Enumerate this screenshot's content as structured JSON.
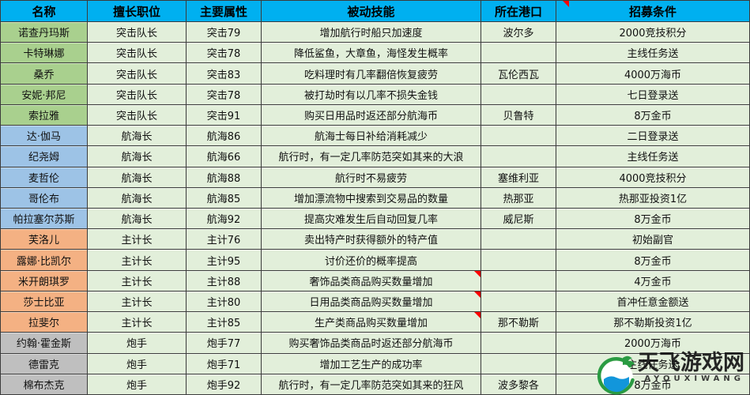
{
  "chart_data": {
    "type": "table",
    "columns": [
      "名称",
      "擅长职位",
      "主要属性",
      "被动技能",
      "所在港口",
      "招募条件"
    ],
    "rows": [
      {
        "name": "诺查丹玛斯",
        "job": "突击队长",
        "attribute": "突击79",
        "skill": "增加航行时船只加速度",
        "port": "波尔多",
        "condition": "2000竞技积分",
        "group": "assault-captain"
      },
      {
        "name": "卡特琳娜",
        "job": "突击队长",
        "attribute": "突击78",
        "skill": "降低鲨鱼，大章鱼，海怪发生概率",
        "port": "",
        "condition": "主线任务送",
        "group": "assault-captain"
      },
      {
        "name": "桑乔",
        "job": "突击队长",
        "attribute": "突击83",
        "skill": "吃料理时有几率翻倍恢复疲劳",
        "port": "瓦伦西瓦",
        "condition": "4000万海币",
        "group": "assault-captain"
      },
      {
        "name": "安妮·邦尼",
        "job": "突击队长",
        "attribute": "突击78",
        "skill": "被打劫时有以几率不损失金钱",
        "port": "",
        "condition": "七日登录送",
        "group": "assault-captain"
      },
      {
        "name": "索拉雅",
        "job": "突击队长",
        "attribute": "突击91",
        "skill": "购买日用品时返还部分航海币",
        "port": "贝鲁特",
        "condition": "8万金币",
        "group": "assault-captain"
      },
      {
        "name": "达·伽马",
        "job": "航海长",
        "attribute": "航海86",
        "skill": "航海士每日补给消耗减少",
        "port": "",
        "condition": "二日登录送",
        "group": "navigator"
      },
      {
        "name": "纪尧姆",
        "job": "航海长",
        "attribute": "航海66",
        "skill": "航行时，有一定几率防范突如其来的大浪",
        "port": "",
        "condition": "主线任务送",
        "group": "navigator"
      },
      {
        "name": "麦哲伦",
        "job": "航海长",
        "attribute": "航海88",
        "skill": "航行时不易疲劳",
        "port": "塞维利亚",
        "condition": "4000竞技积分",
        "group": "navigator"
      },
      {
        "name": "哥伦布",
        "job": "航海长",
        "attribute": "航海85",
        "skill": "增加漂流物中搜索到交易品的数量",
        "port": "热那亚",
        "condition": "热那亚投资1亿",
        "group": "navigator"
      },
      {
        "name": "帕拉塞尔苏斯",
        "job": "航海长",
        "attribute": "航海92",
        "skill": "提高灾难发生后自动回复几率",
        "port": "威尼斯",
        "condition": "8万金币",
        "group": "navigator"
      },
      {
        "name": "芙洛儿",
        "job": "主计长",
        "attribute": "主计76",
        "skill": "卖出特产时获得额外的特产值",
        "port": "",
        "condition": "初始副官",
        "group": "purser"
      },
      {
        "name": "露娜·比凯尔",
        "job": "主计长",
        "attribute": "主计95",
        "skill": "讨价还价的概率提高",
        "port": "",
        "condition": "8万金币",
        "group": "purser"
      },
      {
        "name": "米开朗琪罗",
        "job": "主计长",
        "attribute": "主计88",
        "skill": "奢饰品类商品购买数量增加",
        "port": "",
        "condition": "4万金币",
        "group": "purser",
        "skill_comment": true
      },
      {
        "name": "莎士比亚",
        "job": "主计长",
        "attribute": "主计80",
        "skill": "日用品类商品购买数量增加",
        "port": "",
        "condition": "首冲任意金额送",
        "group": "purser",
        "skill_comment": true
      },
      {
        "name": "拉斐尔",
        "job": "主计长",
        "attribute": "主计85",
        "skill": "生产类商品购买数量增加",
        "port": "那不勒斯",
        "condition": "那不勒斯投资1亿",
        "group": "purser",
        "skill_comment": true
      },
      {
        "name": "约翰·霍金斯",
        "job": "炮手",
        "attribute": "炮手77",
        "skill": "购买奢饰品类商品时返还部分航海币",
        "port": "",
        "condition": "2000万海币",
        "group": "gunner"
      },
      {
        "name": "德雷克",
        "job": "炮手",
        "attribute": "炮手71",
        "skill": "增加工艺生产的成功率",
        "port": "",
        "condition": "主线任务送",
        "group": "gunner"
      },
      {
        "name": "棉布杰克",
        "job": "炮手",
        "attribute": "炮手92",
        "skill": "航行时，有一定几率防范突如其来的狂风",
        "port": "波多黎各",
        "condition": "8万金币",
        "group": "gunner"
      }
    ]
  },
  "colors": {
    "header_bg": "#00b0f0",
    "cell_bg": "#e2efda",
    "border": "#3c3c3c",
    "comment_marker": "#ff0000",
    "logo_green": "#2a9b42",
    "logo_blue": "#1296db",
    "group_bg": {
      "assault-captain": "#a9d08e",
      "navigator": "#9dc3e6",
      "purser": "#f4b183",
      "gunner": "#bfbfbf"
    }
  },
  "watermark": {
    "text": "天飞游戏网",
    "subtext": "AYOUXIWANG",
    "logo": "dragon-wave-logo"
  }
}
